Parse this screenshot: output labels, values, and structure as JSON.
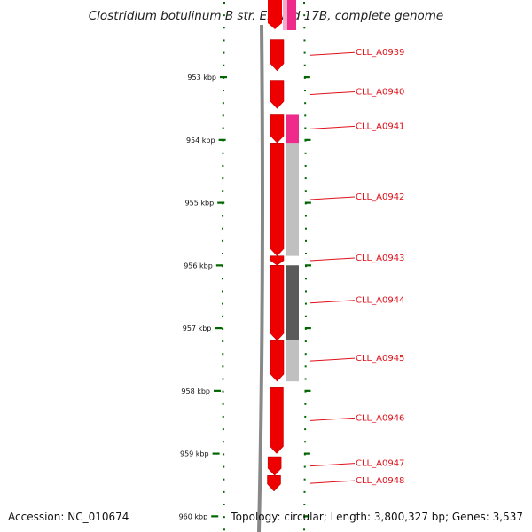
{
  "title": "Clostridium botulinum B str. Eklund 17B, complete genome",
  "footer": {
    "accession": "Accession: NC_010674",
    "info": "Topology: circular; Length: 3,800,327 bp; Genes: 3,537"
  },
  "ruler": {
    "unit": "kbp",
    "ticks": [
      {
        "value": 953,
        "label": "953 kbp"
      },
      {
        "value": 954,
        "label": "954 kbp"
      },
      {
        "value": 955,
        "label": "955 kbp"
      },
      {
        "value": 956,
        "label": "956 kbp"
      },
      {
        "value": 957,
        "label": "957 kbp"
      },
      {
        "value": 958,
        "label": "958 kbp"
      },
      {
        "value": 959,
        "label": "959 kbp"
      },
      {
        "value": 960,
        "label": "960 kbp"
      }
    ]
  },
  "genes": [
    {
      "label": "CLL_A0939",
      "start": 952.4,
      "end": 952.9
    },
    {
      "label": "CLL_A0940",
      "start": 953.05,
      "end": 953.5
    },
    {
      "label": "CLL_A0941",
      "start": 953.6,
      "end": 954.05
    },
    {
      "label": "CLL_A0942",
      "start": 954.05,
      "end": 955.85
    },
    {
      "label": "CLL_A0943",
      "start": 955.85,
      "end": 956.0
    },
    {
      "label": "CLL_A0944",
      "start": 956.0,
      "end": 957.2
    },
    {
      "label": "CLL_A0945",
      "start": 957.2,
      "end": 957.85
    },
    {
      "label": "CLL_A0946",
      "start": 957.95,
      "end": 959.0
    },
    {
      "label": "CLL_A0947",
      "start": 959.05,
      "end": 959.35
    },
    {
      "label": "CLL_A0948",
      "start": 959.35,
      "end": 959.6
    }
  ],
  "colors": {
    "gene": "#ee0000",
    "tick": "#006600",
    "label": "#e0101a",
    "backbone": "#777777",
    "magenta": "#ee2a8a",
    "light_gray": "#c0c0c0",
    "dark_gray": "#5a5a5a"
  }
}
